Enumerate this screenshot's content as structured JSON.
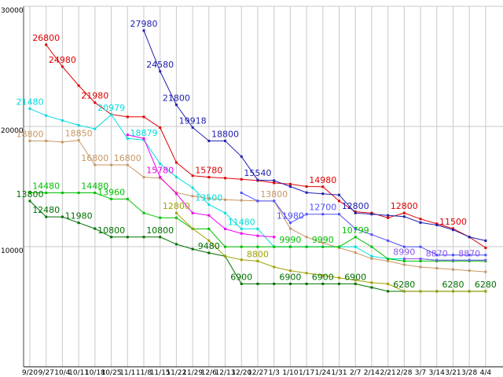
{
  "chart_data": {
    "type": "line",
    "title": "",
    "xlabel": "",
    "ylabel": "",
    "ylim": [
      0,
      30000
    ],
    "y_ticks": [
      10000,
      20000,
      30000
    ],
    "grid": "vertical-and-horizontal",
    "legend_position": "none",
    "x_tick_labels": [
      "9/20",
      "9/27",
      "10/4",
      "10/11",
      "10/18",
      "10/25",
      "11/1",
      "11/8",
      "11/15",
      "11/22",
      "11/29",
      "12/6",
      "12/13",
      "12/20",
      "12/27",
      "1/3",
      "1/10",
      "1/17",
      "1/24",
      "1/31",
      "2/7",
      "2/14",
      "2/21",
      "2/28",
      "3/7",
      "3/14",
      "3/21",
      "3/28",
      "4/4"
    ],
    "series": [
      {
        "name": "red",
        "color": "#e00000",
        "values": [
          null,
          26800,
          24980,
          23400,
          21980,
          21000,
          20800,
          20800,
          19900,
          17000,
          15900,
          15780,
          15700,
          15600,
          15500,
          15300,
          15200,
          15000,
          14980,
          13800,
          12900,
          12800,
          12400,
          12800,
          12300,
          11900,
          11500,
          10800,
          9900
        ]
      },
      {
        "name": "cyan",
        "color": "#00dddd",
        "values": [
          21480,
          20900,
          20500,
          20100,
          19800,
          20979,
          19000,
          18879,
          16900,
          15800,
          14900,
          13500,
          12800,
          11480,
          11480,
          9990,
          9990,
          9990,
          9990,
          9990,
          9990,
          9200,
          8990,
          8990,
          8990,
          8870,
          8870,
          8870,
          8870
        ]
      },
      {
        "name": "tan",
        "color": "#c89664",
        "values": [
          18800,
          18800,
          18700,
          18850,
          16800,
          16800,
          16800,
          15780,
          15700,
          14500,
          14200,
          14000,
          13900,
          13850,
          13800,
          13800,
          11500,
          10800,
          10300,
          9900,
          9500,
          9000,
          8800,
          8500,
          8300,
          8200,
          8100,
          8000,
          7900
        ]
      },
      {
        "name": "magenta",
        "color": "#ee00ee",
        "values": [
          null,
          null,
          null,
          null,
          null,
          null,
          19300,
          19000,
          15780,
          14400,
          12800,
          12600,
          11480,
          11100,
          10900,
          10800,
          null,
          null,
          null,
          null,
          null,
          null,
          null,
          null,
          null,
          null,
          null,
          null,
          null
        ]
      },
      {
        "name": "navy",
        "color": "#2020b0",
        "values": [
          null,
          null,
          null,
          null,
          null,
          null,
          null,
          27980,
          24580,
          21800,
          19918,
          18800,
          18800,
          17500,
          15540,
          15500,
          15000,
          14500,
          14400,
          14300,
          12800,
          12700,
          12600,
          12500,
          12000,
          11800,
          11400,
          10800,
          10500
        ]
      },
      {
        "name": "blue",
        "color": "#5050ff",
        "values": [
          null,
          null,
          null,
          null,
          null,
          null,
          null,
          null,
          null,
          null,
          null,
          null,
          null,
          14480,
          13800,
          13800,
          11980,
          12700,
          12700,
          12700,
          11480,
          11000,
          10500,
          9990,
          9990,
          9300,
          9300,
          9300,
          9300
        ]
      },
      {
        "name": "green",
        "color": "#00c000",
        "values": [
          14480,
          14480,
          14480,
          14480,
          14480,
          13960,
          13960,
          12800,
          12400,
          12400,
          11480,
          11480,
          9990,
          9990,
          9990,
          9990,
          9990,
          9990,
          9990,
          9990,
          10799,
          9990,
          8990,
          8800,
          8800,
          8800,
          8800,
          8800,
          8800
        ]
      },
      {
        "name": "darkgreen",
        "color": "#007000",
        "values": [
          13800,
          12480,
          12480,
          11980,
          11500,
          10800,
          10800,
          10800,
          10800,
          10200,
          9800,
          9480,
          9200,
          6900,
          6900,
          6900,
          6900,
          6900,
          6900,
          6900,
          6900,
          6600,
          6280,
          6280,
          6280,
          6280,
          6280,
          6280,
          6280
        ]
      },
      {
        "name": "olive",
        "color": "#a0a000",
        "values": [
          null,
          null,
          null,
          null,
          null,
          null,
          null,
          null,
          null,
          12800,
          11500,
          10500,
          9200,
          8900,
          8800,
          8300,
          8000,
          7800,
          7600,
          7400,
          7200,
          7000,
          6900,
          6280,
          6280,
          6280,
          6280,
          6280,
          6280
        ]
      },
      {
        "name": "violet",
        "color": "#8855ee",
        "values": [
          null,
          null,
          null,
          null,
          null,
          null,
          null,
          null,
          null,
          null,
          null,
          null,
          null,
          null,
          null,
          null,
          null,
          null,
          null,
          null,
          null,
          null,
          null,
          8990,
          8990,
          8870,
          8870,
          8870,
          8870
        ]
      }
    ],
    "point_labels": [
      {
        "text": "26800",
        "series": "red",
        "i": 1
      },
      {
        "text": "24980",
        "series": "red",
        "i": 2
      },
      {
        "text": "21980",
        "series": "red",
        "i": 4
      },
      {
        "text": "15780",
        "series": "red",
        "i": 11
      },
      {
        "text": "14980",
        "series": "red",
        "i": 18
      },
      {
        "text": "12800",
        "series": "red",
        "i": 23
      },
      {
        "text": "11500",
        "series": "red",
        "i": 26
      },
      {
        "text": "21480",
        "series": "cyan",
        "i": 0
      },
      {
        "text": "20979",
        "series": "cyan",
        "i": 5
      },
      {
        "text": "18879",
        "series": "cyan",
        "i": 7
      },
      {
        "text": "13500",
        "series": "cyan",
        "i": 11
      },
      {
        "text": "11480",
        "series": "cyan",
        "i": 13
      },
      {
        "text": "18800",
        "series": "tan",
        "i": 0
      },
      {
        "text": "18850",
        "series": "tan",
        "i": 3
      },
      {
        "text": "16800",
        "series": "tan",
        "i": 4
      },
      {
        "text": "16800",
        "series": "tan",
        "i": 6
      },
      {
        "text": "13800",
        "series": "tan",
        "i": 15
      },
      {
        "text": "15780",
        "series": "magenta",
        "i": 8
      },
      {
        "text": "27980",
        "series": "navy",
        "i": 7
      },
      {
        "text": "24580",
        "series": "navy",
        "i": 8
      },
      {
        "text": "21800",
        "series": "navy",
        "i": 9
      },
      {
        "text": "19918",
        "series": "navy",
        "i": 10
      },
      {
        "text": "18800",
        "series": "navy",
        "i": 12
      },
      {
        "text": "15540",
        "series": "navy",
        "i": 14
      },
      {
        "text": "12800",
        "series": "navy",
        "i": 20
      },
      {
        "text": "11980",
        "series": "blue",
        "i": 16
      },
      {
        "text": "12700",
        "series": "blue",
        "i": 18
      },
      {
        "text": "14480",
        "series": "green",
        "i": 1
      },
      {
        "text": "14480",
        "series": "green",
        "i": 4
      },
      {
        "text": "13960",
        "series": "green",
        "i": 5
      },
      {
        "text": "9990",
        "series": "green",
        "i": 16
      },
      {
        "text": "9990",
        "series": "green",
        "i": 18
      },
      {
        "text": "10799",
        "series": "green",
        "i": 20
      },
      {
        "text": "13800",
        "series": "darkgreen",
        "i": 0
      },
      {
        "text": "12480",
        "series": "darkgreen",
        "i": 1
      },
      {
        "text": "11980",
        "series": "darkgreen",
        "i": 3
      },
      {
        "text": "10800",
        "series": "darkgreen",
        "i": 5
      },
      {
        "text": "10800",
        "series": "darkgreen",
        "i": 8
      },
      {
        "text": "9480",
        "series": "darkgreen",
        "i": 11
      },
      {
        "text": "6900",
        "series": "darkgreen",
        "i": 13
      },
      {
        "text": "6900",
        "series": "darkgreen",
        "i": 16
      },
      {
        "text": "6900",
        "series": "darkgreen",
        "i": 18
      },
      {
        "text": "6900",
        "series": "darkgreen",
        "i": 20
      },
      {
        "text": "6280",
        "series": "darkgreen",
        "i": 23
      },
      {
        "text": "6280",
        "series": "darkgreen",
        "i": 26
      },
      {
        "text": "6280",
        "series": "darkgreen",
        "i": 28
      },
      {
        "text": "12800",
        "series": "olive",
        "i": 9
      },
      {
        "text": "8800",
        "series": "olive",
        "i": 14
      },
      {
        "text": "8990",
        "series": "violet",
        "i": 23
      },
      {
        "text": "8870",
        "series": "violet",
        "i": 25
      },
      {
        "text": "8870",
        "series": "violet",
        "i": 27
      }
    ],
    "colors": {
      "gridline": "#c9c9c9",
      "axis": "#444444",
      "tick_text": "#000000",
      "background": "#ffffff"
    }
  }
}
